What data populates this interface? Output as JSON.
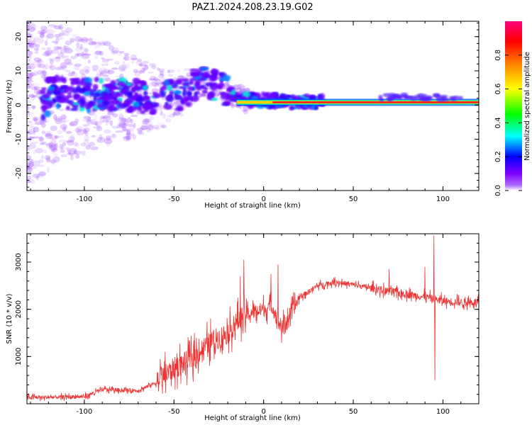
{
  "title": "PAZ1.2024.208.23.19.G02",
  "chart_data": [
    {
      "type": "heatmap",
      "xlabel": "Height of straight line (km)",
      "ylabel": "Frequency (Hz)",
      "xlim": [
        -132,
        120
      ],
      "ylim": [
        -25,
        24.5
      ],
      "xticks": [
        -100,
        -50,
        0,
        50,
        100
      ],
      "yticks": [
        -20,
        -10,
        0,
        10,
        20
      ],
      "colorbar": {
        "label": "Normalized spectral amplitude",
        "range": [
          0,
          1
        ],
        "ticks": [
          0.0,
          0.2,
          0.4,
          0.6,
          0.8
        ],
        "colors": [
          "#ffffff",
          "#8000ff",
          "#0000ff",
          "#00ffff",
          "#00ff00",
          "#ffff00",
          "#ff8000",
          "#ff0000",
          "#ff0080"
        ]
      },
      "ridge": [
        {
          "x": -120,
          "f": 3.5
        },
        {
          "x": -100,
          "f": 3.0
        },
        {
          "x": -80,
          "f": 3.0
        },
        {
          "x": -60,
          "f": 2.0
        },
        {
          "x": -45,
          "f": 3.5
        },
        {
          "x": -35,
          "f": 7.0
        },
        {
          "x": -25,
          "f": 5.5
        },
        {
          "x": -18,
          "f": 3.0
        },
        {
          "x": -10,
          "f": 1.5
        },
        {
          "x": 0,
          "f": 1.5
        },
        {
          "x": 10,
          "f": 1.0
        },
        {
          "x": 20,
          "f": 0.8
        },
        {
          "x": 120,
          "f": 0.8
        }
      ],
      "grid": false
    },
    {
      "type": "line",
      "xlabel": "Height of straight line (km)",
      "ylabel": "SNR (10 * v/v)",
      "xlim": [
        -132,
        120
      ],
      "ylim": [
        0,
        3600
      ],
      "xticks": [
        -100,
        -50,
        0,
        50,
        100
      ],
      "yticks": [
        1000,
        2000,
        3000
      ],
      "color": "#ee3333",
      "envelope": [
        {
          "x": -132,
          "y": 130
        },
        {
          "x": -100,
          "y": 150
        },
        {
          "x": -90,
          "y": 300
        },
        {
          "x": -70,
          "y": 280
        },
        {
          "x": -60,
          "y": 450
        },
        {
          "x": -50,
          "y": 750
        },
        {
          "x": -40,
          "y": 950
        },
        {
          "x": -30,
          "y": 1300
        },
        {
          "x": -20,
          "y": 1500
        },
        {
          "x": -12,
          "y": 1850
        },
        {
          "x": -5,
          "y": 1950
        },
        {
          "x": 0,
          "y": 2000
        },
        {
          "x": 5,
          "y": 2050
        },
        {
          "x": 10,
          "y": 1600
        },
        {
          "x": 15,
          "y": 1900
        },
        {
          "x": 20,
          "y": 2250
        },
        {
          "x": 30,
          "y": 2500
        },
        {
          "x": 40,
          "y": 2580
        },
        {
          "x": 50,
          "y": 2520
        },
        {
          "x": 60,
          "y": 2450
        },
        {
          "x": 70,
          "y": 2380
        },
        {
          "x": 80,
          "y": 2320
        },
        {
          "x": 90,
          "y": 2260
        },
        {
          "x": 100,
          "y": 2180
        },
        {
          "x": 110,
          "y": 2150
        },
        {
          "x": 120,
          "y": 2150
        }
      ],
      "spikes": [
        {
          "x": -11,
          "y": 3050
        },
        {
          "x": -13,
          "y": 2700
        },
        {
          "x": 8,
          "y": 2950
        },
        {
          "x": 4,
          "y": 2750
        },
        {
          "x": 95,
          "y": 3560
        },
        {
          "x": 95.5,
          "y": 500
        },
        {
          "x": 70,
          "y": 2850
        },
        {
          "x": 90,
          "y": 2900
        }
      ],
      "grid": false
    }
  ]
}
